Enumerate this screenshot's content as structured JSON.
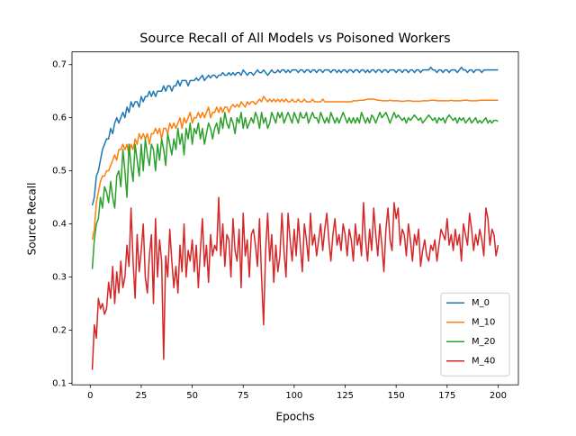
{
  "chart_data": {
    "type": "line",
    "title": "Source Recall of All Models vs Poisoned Workers",
    "x_label": "Epochs",
    "y_label": "Source Recall",
    "xlim": [
      -8.95,
      209.95
    ],
    "ylim": [
      0.097,
      0.724
    ],
    "xticks": [
      0,
      25,
      50,
      75,
      100,
      125,
      150,
      175,
      200
    ],
    "yticks": [
      0.1,
      0.2,
      0.3,
      0.4,
      0.5,
      0.6,
      0.7
    ],
    "grid": false,
    "legend": "lower right",
    "x": [
      1,
      2,
      3,
      4,
      5,
      6,
      7,
      8,
      9,
      10,
      11,
      12,
      13,
      14,
      15,
      16,
      17,
      18,
      19,
      20,
      21,
      22,
      23,
      24,
      25,
      26,
      27,
      28,
      29,
      30,
      31,
      32,
      33,
      34,
      35,
      36,
      37,
      38,
      39,
      40,
      41,
      42,
      43,
      44,
      45,
      46,
      47,
      48,
      49,
      50,
      51,
      52,
      53,
      54,
      55,
      56,
      57,
      58,
      59,
      60,
      61,
      62,
      63,
      64,
      65,
      66,
      67,
      68,
      69,
      70,
      71,
      72,
      73,
      74,
      75,
      76,
      77,
      78,
      79,
      80,
      81,
      82,
      83,
      84,
      85,
      86,
      87,
      88,
      89,
      90,
      91,
      92,
      93,
      94,
      95,
      96,
      97,
      98,
      99,
      100,
      101,
      102,
      103,
      104,
      105,
      106,
      107,
      108,
      109,
      110,
      111,
      112,
      113,
      114,
      115,
      116,
      117,
      118,
      119,
      120,
      121,
      122,
      123,
      124,
      125,
      126,
      127,
      128,
      129,
      130,
      131,
      132,
      133,
      134,
      135,
      136,
      137,
      138,
      139,
      140,
      141,
      142,
      143,
      144,
      145,
      146,
      147,
      148,
      149,
      150,
      151,
      152,
      153,
      154,
      155,
      156,
      157,
      158,
      159,
      160,
      161,
      162,
      163,
      164,
      165,
      166,
      167,
      168,
      169,
      170,
      171,
      172,
      173,
      174,
      175,
      176,
      177,
      178,
      179,
      180,
      181,
      182,
      183,
      184,
      185,
      186,
      187,
      188,
      189,
      190,
      191,
      192,
      193,
      194,
      195,
      196,
      197,
      198,
      199,
      200
    ],
    "series": [
      {
        "name": "M_0",
        "color": "#1f77b4",
        "values": [
          0.435,
          0.45,
          0.49,
          0.5,
          0.52,
          0.54,
          0.55,
          0.56,
          0.56,
          0.58,
          0.57,
          0.59,
          0.6,
          0.59,
          0.6,
          0.61,
          0.6,
          0.62,
          0.61,
          0.63,
          0.62,
          0.63,
          0.63,
          0.62,
          0.64,
          0.63,
          0.64,
          0.64,
          0.65,
          0.64,
          0.65,
          0.64,
          0.65,
          0.65,
          0.65,
          0.66,
          0.65,
          0.66,
          0.66,
          0.65,
          0.66,
          0.66,
          0.67,
          0.66,
          0.67,
          0.67,
          0.67,
          0.66,
          0.67,
          0.67,
          0.67,
          0.675,
          0.67,
          0.675,
          0.68,
          0.67,
          0.675,
          0.68,
          0.675,
          0.68,
          0.68,
          0.675,
          0.68,
          0.68,
          0.685,
          0.68,
          0.68,
          0.685,
          0.68,
          0.685,
          0.68,
          0.685,
          0.685,
          0.68,
          0.69,
          0.685,
          0.68,
          0.685,
          0.685,
          0.68,
          0.685,
          0.69,
          0.685,
          0.685,
          0.69,
          0.685,
          0.68,
          0.685,
          0.69,
          0.685,
          0.685,
          0.69,
          0.685,
          0.69,
          0.69,
          0.685,
          0.69,
          0.685,
          0.69,
          0.69,
          0.69,
          0.685,
          0.69,
          0.69,
          0.685,
          0.69,
          0.69,
          0.685,
          0.69,
          0.69,
          0.685,
          0.69,
          0.69,
          0.685,
          0.69,
          0.69,
          0.69,
          0.685,
          0.69,
          0.69,
          0.685,
          0.69,
          0.685,
          0.69,
          0.69,
          0.685,
          0.69,
          0.69,
          0.685,
          0.69,
          0.69,
          0.685,
          0.69,
          0.69,
          0.685,
          0.69,
          0.685,
          0.69,
          0.69,
          0.685,
          0.69,
          0.69,
          0.685,
          0.69,
          0.69,
          0.685,
          0.69,
          0.69,
          0.69,
          0.685,
          0.69,
          0.69,
          0.685,
          0.69,
          0.69,
          0.685,
          0.69,
          0.69,
          0.685,
          0.69,
          0.69,
          0.685,
          0.69,
          0.69,
          0.69,
          0.69,
          0.695,
          0.69,
          0.69,
          0.685,
          0.69,
          0.69,
          0.685,
          0.69,
          0.69,
          0.685,
          0.69,
          0.69,
          0.69,
          0.685,
          0.69,
          0.695,
          0.69,
          0.69,
          0.685,
          0.69,
          0.69,
          0.685,
          0.69,
          0.69,
          0.69,
          0.685,
          0.69,
          0.69,
          0.69,
          0.69,
          0.69,
          0.69,
          0.69,
          0.69
        ]
      },
      {
        "name": "M_10",
        "color": "#ff7f0e",
        "values": [
          0.37,
          0.39,
          0.44,
          0.46,
          0.48,
          0.49,
          0.49,
          0.5,
          0.5,
          0.51,
          0.52,
          0.53,
          0.52,
          0.54,
          0.54,
          0.55,
          0.54,
          0.55,
          0.53,
          0.55,
          0.54,
          0.56,
          0.55,
          0.57,
          0.56,
          0.57,
          0.56,
          0.57,
          0.55,
          0.57,
          0.57,
          0.58,
          0.57,
          0.58,
          0.56,
          0.58,
          0.58,
          0.57,
          0.59,
          0.58,
          0.59,
          0.58,
          0.59,
          0.6,
          0.58,
          0.6,
          0.59,
          0.6,
          0.61,
          0.59,
          0.6,
          0.6,
          0.61,
          0.6,
          0.61,
          0.6,
          0.61,
          0.62,
          0.6,
          0.61,
          0.61,
          0.62,
          0.61,
          0.62,
          0.61,
          0.62,
          0.62,
          0.61,
          0.62,
          0.625,
          0.62,
          0.625,
          0.62,
          0.63,
          0.625,
          0.62,
          0.63,
          0.625,
          0.63,
          0.63,
          0.625,
          0.63,
          0.635,
          0.63,
          0.64,
          0.635,
          0.63,
          0.635,
          0.63,
          0.635,
          0.63,
          0.635,
          0.63,
          0.635,
          0.63,
          0.635,
          0.63,
          0.63,
          0.635,
          0.63,
          0.63,
          0.635,
          0.63,
          0.63,
          0.635,
          0.63,
          0.63,
          0.63,
          0.635,
          0.63,
          0.63,
          0.63,
          0.63,
          0.635,
          0.63,
          0.63,
          0.63,
          0.63,
          0.63,
          0.63,
          0.63,
          0.63,
          0.63,
          0.63,
          0.63,
          0.63,
          0.63,
          0.63,
          0.632,
          0.632,
          0.632,
          0.633,
          0.633,
          0.633,
          0.634,
          0.635,
          0.635,
          0.635,
          0.635,
          0.634,
          0.633,
          0.633,
          0.632,
          0.632,
          0.632,
          0.632,
          0.633,
          0.632,
          0.632,
          0.632,
          0.632,
          0.631,
          0.631,
          0.631,
          0.632,
          0.632,
          0.632,
          0.631,
          0.631,
          0.631,
          0.631,
          0.631,
          0.632,
          0.632,
          0.632,
          0.632,
          0.633,
          0.633,
          0.633,
          0.632,
          0.632,
          0.632,
          0.632,
          0.632,
          0.632,
          0.632,
          0.633,
          0.632,
          0.632,
          0.632,
          0.632,
          0.632,
          0.633,
          0.633,
          0.633,
          0.632,
          0.632,
          0.632,
          0.632,
          0.632,
          0.633,
          0.633,
          0.633,
          0.633,
          0.633,
          0.633,
          0.633,
          0.633,
          0.633,
          0.633
        ]
      },
      {
        "name": "M_20",
        "color": "#2ca02c",
        "values": [
          0.315,
          0.37,
          0.4,
          0.41,
          0.45,
          0.43,
          0.47,
          0.46,
          0.44,
          0.48,
          0.45,
          0.43,
          0.49,
          0.5,
          0.47,
          0.54,
          0.5,
          0.45,
          0.55,
          0.51,
          0.48,
          0.55,
          0.52,
          0.49,
          0.55,
          0.5,
          0.56,
          0.53,
          0.51,
          0.55,
          0.54,
          0.5,
          0.55,
          0.52,
          0.56,
          0.54,
          0.51,
          0.57,
          0.55,
          0.53,
          0.56,
          0.54,
          0.58,
          0.55,
          0.57,
          0.53,
          0.58,
          0.56,
          0.59,
          0.55,
          0.58,
          0.57,
          0.59,
          0.56,
          0.58,
          0.55,
          0.57,
          0.59,
          0.58,
          0.56,
          0.58,
          0.59,
          0.57,
          0.6,
          0.58,
          0.61,
          0.59,
          0.58,
          0.6,
          0.59,
          0.57,
          0.6,
          0.59,
          0.61,
          0.58,
          0.6,
          0.58,
          0.59,
          0.6,
          0.59,
          0.61,
          0.6,
          0.58,
          0.61,
          0.59,
          0.6,
          0.58,
          0.59,
          0.61,
          0.6,
          0.59,
          0.61,
          0.6,
          0.61,
          0.59,
          0.6,
          0.61,
          0.6,
          0.59,
          0.61,
          0.6,
          0.59,
          0.61,
          0.6,
          0.6,
          0.61,
          0.59,
          0.6,
          0.61,
          0.6,
          0.6,
          0.59,
          0.61,
          0.6,
          0.59,
          0.6,
          0.59,
          0.61,
          0.6,
          0.59,
          0.6,
          0.59,
          0.6,
          0.61,
          0.6,
          0.59,
          0.6,
          0.59,
          0.6,
          0.59,
          0.6,
          0.59,
          0.61,
          0.6,
          0.59,
          0.6,
          0.59,
          0.605,
          0.6,
          0.59,
          0.6,
          0.61,
          0.6,
          0.605,
          0.61,
          0.6,
          0.59,
          0.6,
          0.61,
          0.6,
          0.605,
          0.6,
          0.595,
          0.6,
          0.59,
          0.6,
          0.595,
          0.6,
          0.605,
          0.6,
          0.595,
          0.6,
          0.59,
          0.595,
          0.6,
          0.605,
          0.6,
          0.595,
          0.6,
          0.59,
          0.6,
          0.595,
          0.6,
          0.59,
          0.6,
          0.605,
          0.6,
          0.595,
          0.6,
          0.59,
          0.6,
          0.595,
          0.6,
          0.59,
          0.595,
          0.6,
          0.59,
          0.595,
          0.6,
          0.59,
          0.595,
          0.59,
          0.595,
          0.6,
          0.59,
          0.595,
          0.59,
          0.595,
          0.595,
          0.593
        ]
      },
      {
        "name": "M_40",
        "color": "#d62728",
        "values": [
          0.125,
          0.21,
          0.185,
          0.26,
          0.24,
          0.25,
          0.23,
          0.24,
          0.29,
          0.26,
          0.32,
          0.25,
          0.31,
          0.27,
          0.33,
          0.28,
          0.3,
          0.36,
          0.32,
          0.43,
          0.33,
          0.26,
          0.38,
          0.31,
          0.35,
          0.4,
          0.3,
          0.27,
          0.34,
          0.38,
          0.25,
          0.41,
          0.3,
          0.37,
          0.33,
          0.145,
          0.34,
          0.3,
          0.39,
          0.33,
          0.28,
          0.32,
          0.27,
          0.36,
          0.31,
          0.4,
          0.3,
          0.35,
          0.33,
          0.37,
          0.31,
          0.36,
          0.28,
          0.35,
          0.41,
          0.32,
          0.36,
          0.29,
          0.38,
          0.34,
          0.36,
          0.35,
          0.45,
          0.34,
          0.4,
          0.32,
          0.38,
          0.37,
          0.3,
          0.41,
          0.35,
          0.33,
          0.39,
          0.28,
          0.42,
          0.34,
          0.37,
          0.3,
          0.38,
          0.39,
          0.36,
          0.32,
          0.41,
          0.3,
          0.21,
          0.35,
          0.42,
          0.33,
          0.38,
          0.29,
          0.36,
          0.31,
          0.34,
          0.42,
          0.35,
          0.3,
          0.42,
          0.37,
          0.33,
          0.39,
          0.34,
          0.41,
          0.36,
          0.31,
          0.4,
          0.37,
          0.33,
          0.42,
          0.36,
          0.38,
          0.34,
          0.37,
          0.4,
          0.35,
          0.39,
          0.42,
          0.37,
          0.33,
          0.38,
          0.41,
          0.36,
          0.38,
          0.35,
          0.4,
          0.38,
          0.34,
          0.39,
          0.37,
          0.33,
          0.4,
          0.36,
          0.38,
          0.34,
          0.44,
          0.37,
          0.33,
          0.39,
          0.35,
          0.43,
          0.38,
          0.34,
          0.4,
          0.36,
          0.31,
          0.39,
          0.43,
          0.37,
          0.35,
          0.44,
          0.41,
          0.43,
          0.36,
          0.39,
          0.38,
          0.34,
          0.4,
          0.37,
          0.33,
          0.38,
          0.36,
          0.39,
          0.32,
          0.35,
          0.37,
          0.34,
          0.33,
          0.36,
          0.35,
          0.37,
          0.33,
          0.36,
          0.39,
          0.38,
          0.37,
          0.41,
          0.36,
          0.38,
          0.35,
          0.39,
          0.36,
          0.38,
          0.33,
          0.4,
          0.38,
          0.36,
          0.42,
          0.39,
          0.35,
          0.38,
          0.36,
          0.39,
          0.37,
          0.34,
          0.43,
          0.41,
          0.36,
          0.39,
          0.38,
          0.34,
          0.36
        ]
      }
    ]
  }
}
